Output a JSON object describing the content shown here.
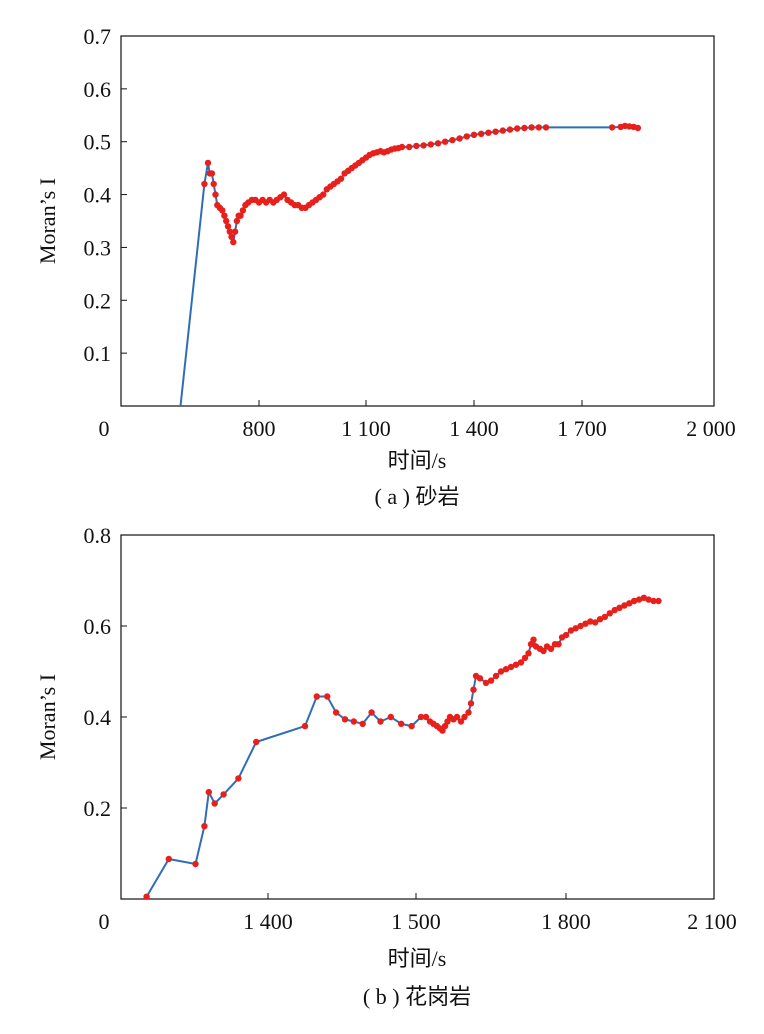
{
  "chart_data": [
    {
      "type": "line",
      "caption": "( a ) 砂岩",
      "xlabel": "时间/s",
      "ylabel": "Moran’s I",
      "xtick_labels": [
        "0",
        "800",
        "1 100",
        "1 400",
        "1 700",
        "2 000"
      ],
      "ytick_labels": [
        "0.1",
        "0.2",
        "0.3",
        "0.4",
        "0.5",
        "0.6",
        "0.7"
      ],
      "ylim": [
        0,
        0.7
      ],
      "grid": false,
      "line_color": "#2f6eb5",
      "marker_color": "#e8201c",
      "series": [
        {
          "points": [
            [
              580,
              0.0
            ],
            [
              647,
              0.42
            ],
            [
              657,
              0.46
            ],
            [
              662,
              0.44
            ],
            [
              668,
              0.44
            ],
            [
              673,
              0.42
            ],
            [
              678,
              0.4
            ],
            [
              683,
              0.38
            ],
            [
              690,
              0.375
            ],
            [
              697,
              0.37
            ],
            [
              703,
              0.36
            ],
            [
              708,
              0.35
            ],
            [
              713,
              0.34
            ],
            [
              718,
              0.33
            ],
            [
              723,
              0.32
            ],
            [
              728,
              0.31
            ],
            [
              733,
              0.33
            ],
            [
              738,
              0.35
            ],
            [
              743,
              0.36
            ],
            [
              748,
              0.36
            ],
            [
              755,
              0.37
            ],
            [
              762,
              0.38
            ],
            [
              770,
              0.385
            ],
            [
              780,
              0.39
            ],
            [
              790,
              0.39
            ],
            [
              800,
              0.385
            ],
            [
              810,
              0.39
            ],
            [
              820,
              0.385
            ],
            [
              830,
              0.39
            ],
            [
              840,
              0.385
            ],
            [
              850,
              0.39
            ],
            [
              860,
              0.395
            ],
            [
              870,
              0.4
            ],
            [
              880,
              0.39
            ],
            [
              890,
              0.385
            ],
            [
              900,
              0.38
            ],
            [
              910,
              0.38
            ],
            [
              920,
              0.375
            ],
            [
              930,
              0.375
            ],
            [
              940,
              0.38
            ],
            [
              950,
              0.385
            ],
            [
              960,
              0.39
            ],
            [
              970,
              0.395
            ],
            [
              980,
              0.4
            ],
            [
              990,
              0.41
            ],
            [
              1000,
              0.415
            ],
            [
              1010,
              0.42
            ],
            [
              1020,
              0.425
            ],
            [
              1030,
              0.43
            ],
            [
              1040,
              0.44
            ],
            [
              1050,
              0.445
            ],
            [
              1060,
              0.45
            ],
            [
              1070,
              0.455
            ],
            [
              1080,
              0.46
            ],
            [
              1090,
              0.465
            ],
            [
              1100,
              0.47
            ],
            [
              1110,
              0.475
            ],
            [
              1120,
              0.478
            ],
            [
              1130,
              0.48
            ],
            [
              1140,
              0.482
            ],
            [
              1150,
              0.48
            ],
            [
              1160,
              0.482
            ],
            [
              1170,
              0.485
            ],
            [
              1180,
              0.487
            ],
            [
              1190,
              0.488
            ],
            [
              1200,
              0.49
            ],
            [
              1220,
              0.49
            ],
            [
              1240,
              0.492
            ],
            [
              1260,
              0.493
            ],
            [
              1280,
              0.495
            ],
            [
              1300,
              0.497
            ],
            [
              1320,
              0.5
            ],
            [
              1340,
              0.503
            ],
            [
              1360,
              0.506
            ],
            [
              1380,
              0.51
            ],
            [
              1400,
              0.513
            ],
            [
              1420,
              0.515
            ],
            [
              1440,
              0.517
            ],
            [
              1460,
              0.519
            ],
            [
              1480,
              0.521
            ],
            [
              1500,
              0.523
            ],
            [
              1520,
              0.525
            ],
            [
              1540,
              0.526
            ],
            [
              1560,
              0.527
            ],
            [
              1580,
              0.527
            ],
            [
              1600,
              0.527
            ],
            [
              1770,
              0.527
            ],
            [
              1790,
              0.528
            ],
            [
              1800,
              0.53
            ],
            [
              1810,
              0.529
            ],
            [
              1820,
              0.528
            ],
            [
              1830,
              0.526
            ]
          ],
          "markers_from_index": 1
        }
      ]
    },
    {
      "type": "line",
      "caption": "( b ) 花岗岩",
      "xlabel": "时间/s",
      "ylabel": "Moran’s I",
      "xtick_labels": [
        "0",
        "1 400",
        "1 500",
        "1 800",
        "2 100"
      ],
      "ytick_labels": [
        "0.2",
        "0.4",
        "0.6",
        "0.8"
      ],
      "ylim": [
        0,
        0.8
      ],
      "grid": false,
      "line_color": "#2f6eb5",
      "marker_color": "#e8201c",
      "series": [
        {
          "points": [
            [
              1318,
              0.005
            ],
            [
              1333,
              0.088
            ],
            [
              1351,
              0.077
            ],
            [
              1357,
              0.16
            ],
            [
              1360,
              0.235
            ],
            [
              1364,
              0.21
            ],
            [
              1370,
              0.23
            ],
            [
              1380,
              0.265
            ],
            [
              1392,
              0.345
            ],
            [
              1425,
              0.38
            ],
            [
              1433,
              0.445
            ],
            [
              1440,
              0.445
            ],
            [
              1446,
              0.41
            ],
            [
              1452,
              0.395
            ],
            [
              1458,
              0.39
            ],
            [
              1464,
              0.385
            ],
            [
              1470,
              0.41
            ],
            [
              1476,
              0.39
            ],
            [
              1483,
              0.4
            ],
            [
              1490,
              0.385
            ],
            [
              1497,
              0.38
            ],
            [
              1510,
              0.4
            ],
            [
              1520,
              0.4
            ],
            [
              1528,
              0.39
            ],
            [
              1535,
              0.385
            ],
            [
              1542,
              0.38
            ],
            [
              1548,
              0.375
            ],
            [
              1553,
              0.37
            ],
            [
              1558,
              0.38
            ],
            [
              1563,
              0.39
            ],
            [
              1568,
              0.4
            ],
            [
              1575,
              0.395
            ],
            [
              1582,
              0.4
            ],
            [
              1590,
              0.39
            ],
            [
              1597,
              0.4
            ],
            [
              1605,
              0.41
            ],
            [
              1610,
              0.43
            ],
            [
              1615,
              0.46
            ],
            [
              1620,
              0.49
            ],
            [
              1628,
              0.485
            ],
            [
              1640,
              0.475
            ],
            [
              1650,
              0.48
            ],
            [
              1660,
              0.49
            ],
            [
              1670,
              0.5
            ],
            [
              1680,
              0.505
            ],
            [
              1690,
              0.51
            ],
            [
              1700,
              0.515
            ],
            [
              1710,
              0.52
            ],
            [
              1718,
              0.53
            ],
            [
              1725,
              0.54
            ],
            [
              1730,
              0.56
            ],
            [
              1735,
              0.57
            ],
            [
              1740,
              0.555
            ],
            [
              1748,
              0.55
            ],
            [
              1755,
              0.545
            ],
            [
              1762,
              0.555
            ],
            [
              1770,
              0.55
            ],
            [
              1778,
              0.56
            ],
            [
              1785,
              0.56
            ],
            [
              1792,
              0.575
            ],
            [
              1800,
              0.58
            ],
            [
              1810,
              0.59
            ],
            [
              1820,
              0.595
            ],
            [
              1830,
              0.6
            ],
            [
              1840,
              0.605
            ],
            [
              1850,
              0.61
            ],
            [
              1860,
              0.608
            ],
            [
              1870,
              0.615
            ],
            [
              1880,
              0.62
            ],
            [
              1890,
              0.628
            ],
            [
              1900,
              0.635
            ],
            [
              1910,
              0.64
            ],
            [
              1920,
              0.645
            ],
            [
              1930,
              0.65
            ],
            [
              1940,
              0.655
            ],
            [
              1950,
              0.658
            ],
            [
              1960,
              0.662
            ],
            [
              1970,
              0.658
            ],
            [
              1980,
              0.655
            ],
            [
              1990,
              0.655
            ]
          ],
          "markers_from_index": 0
        }
      ]
    }
  ]
}
